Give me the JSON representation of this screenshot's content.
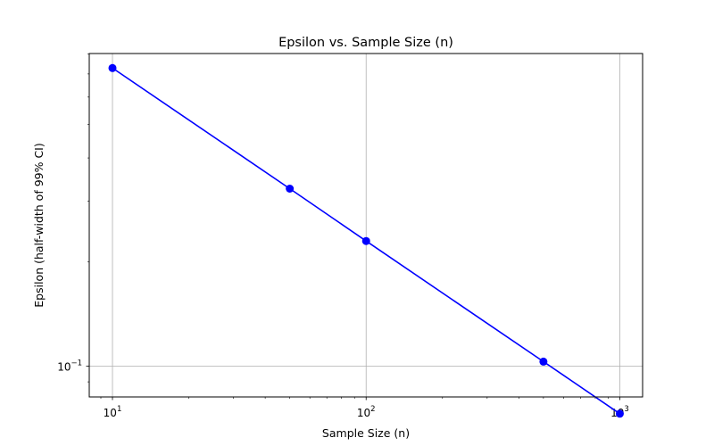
{
  "chart_data": {
    "type": "line",
    "title": "Epsilon vs. Sample Size (n)",
    "xlabel": "Sample Size (n)",
    "ylabel": "Epsilon (half-width of 99% CI)",
    "x_scale": "log",
    "y_scale": "log",
    "xlim": [
      8.1,
      1230
    ],
    "ylim": [
      0.0814,
      0.802
    ],
    "x_ticks": [
      {
        "value": 10,
        "base": "10",
        "exp": "1"
      },
      {
        "value": 100,
        "base": "10",
        "exp": "2"
      },
      {
        "value": 1000,
        "base": "10",
        "exp": "3"
      }
    ],
    "y_ticks": [
      {
        "value": 0.1,
        "base": "10",
        "exp": "−1"
      }
    ],
    "grid": true,
    "series": [
      {
        "color": "#0000ff",
        "marker": "circle",
        "x": [
          10,
          50,
          100,
          500,
          1000
        ],
        "y": [
          0.728,
          0.326,
          0.23,
          0.103,
          0.0728
        ]
      }
    ]
  }
}
